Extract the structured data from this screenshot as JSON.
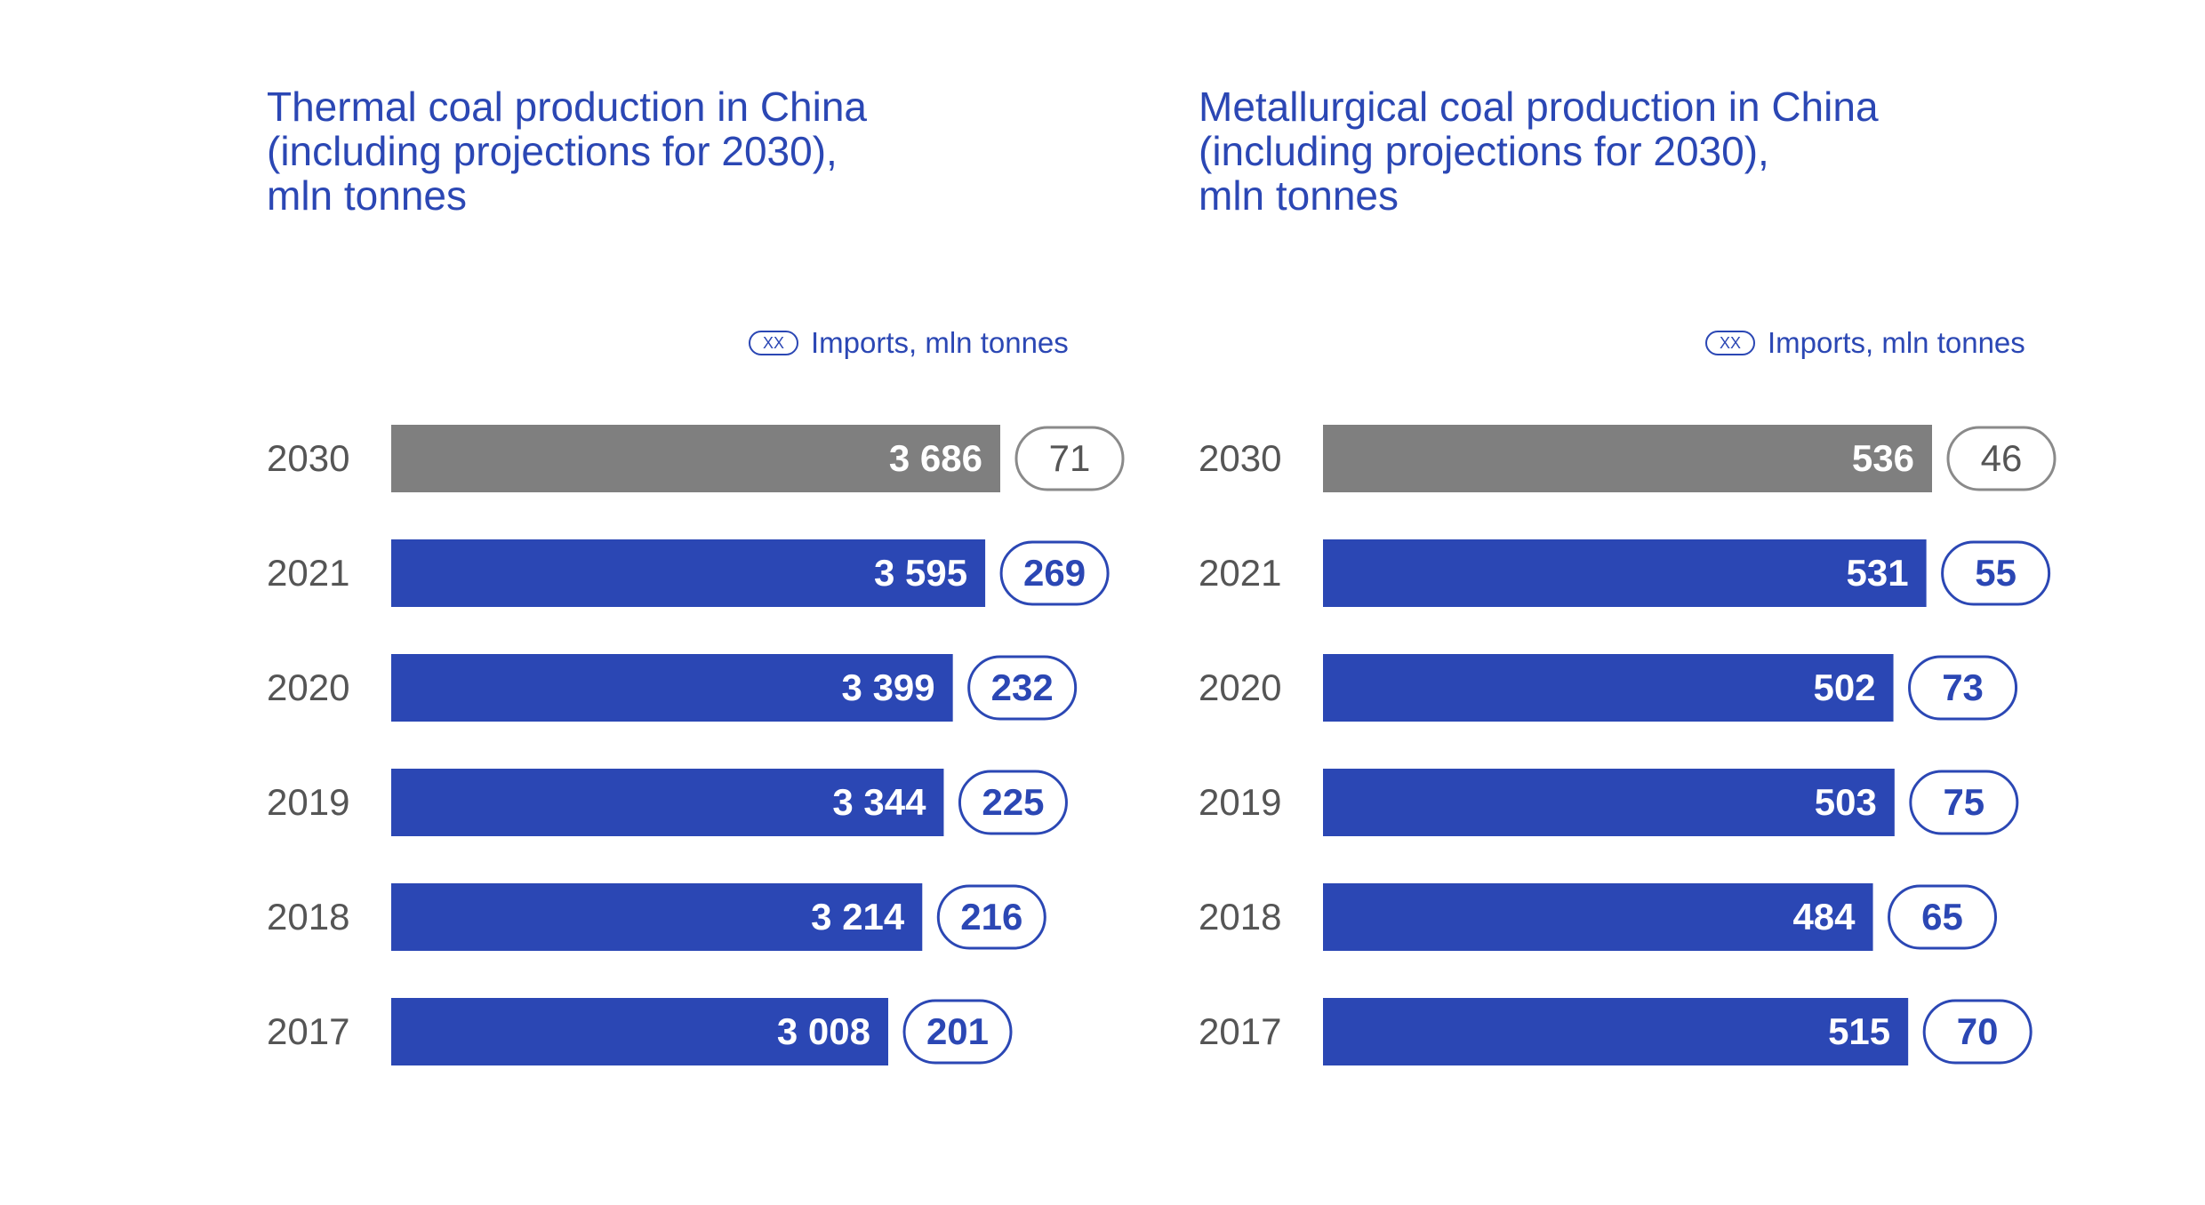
{
  "colors": {
    "accent": "#2b47b4",
    "projection": "#7f7f7f",
    "year_text": "#555555",
    "projection_border": "#8a8a8a"
  },
  "legend": {
    "swatch_text": "XX",
    "label": "Imports, mln tonnes"
  },
  "chart_data": [
    {
      "type": "bar",
      "orientation": "horizontal",
      "title_lines": [
        "Thermal coal production in China",
        "(including projections for 2030),",
        "mln tonnes"
      ],
      "categories": [
        "2030",
        "2021",
        "2020",
        "2019",
        "2018",
        "2017"
      ],
      "values": [
        3686,
        3595,
        3399,
        3344,
        3214,
        3008
      ],
      "value_labels": [
        "3 686",
        "3 595",
        "3 399",
        "3 344",
        "3 214",
        "3 008"
      ],
      "imports": [
        71,
        269,
        232,
        225,
        216,
        201
      ],
      "projection": [
        true,
        false,
        false,
        false,
        false,
        false
      ],
      "legend_label": "Imports, mln tonnes"
    },
    {
      "type": "bar",
      "orientation": "horizontal",
      "title_lines": [
        "Metallurgical coal production in China",
        "(including projections for 2030),",
        "mln tonnes"
      ],
      "categories": [
        "2030",
        "2021",
        "2020",
        "2019",
        "2018",
        "2017"
      ],
      "values": [
        536,
        531,
        502,
        503,
        484,
        515
      ],
      "value_labels": [
        "536",
        "531",
        "502",
        "503",
        "484",
        "515"
      ],
      "imports": [
        46,
        55,
        73,
        75,
        65,
        70
      ],
      "projection": [
        true,
        false,
        false,
        false,
        false,
        false
      ],
      "legend_label": "Imports, mln tonnes"
    }
  ]
}
